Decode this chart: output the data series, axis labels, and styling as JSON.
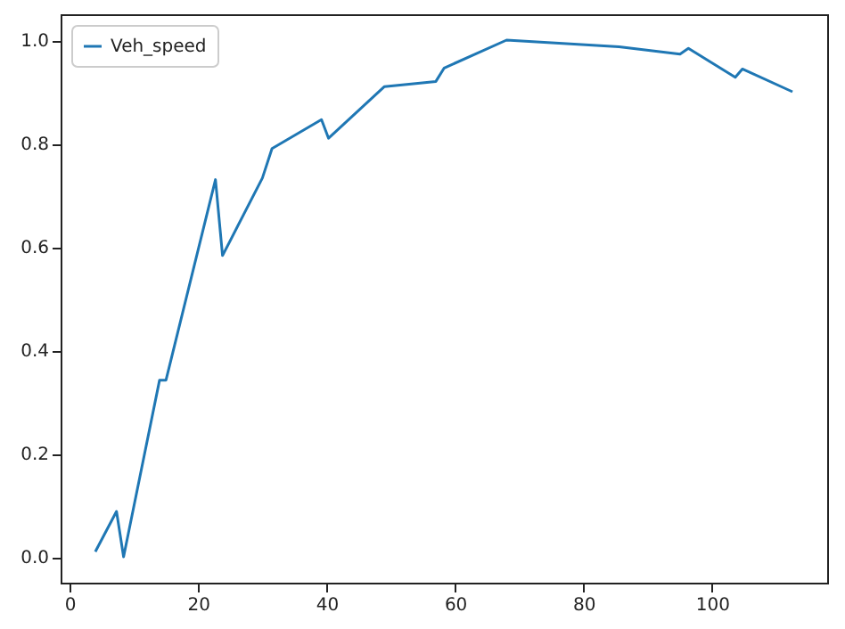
{
  "chart_data": {
    "type": "line",
    "x": [
      4,
      7.3,
      8.4,
      14,
      15,
      22.7,
      23.8,
      30,
      31.5,
      39.2,
      40.3,
      49,
      57,
      58.3,
      68,
      85.5,
      95,
      96.3,
      103.6,
      104.7,
      112.5
    ],
    "series": [
      {
        "name": "Veh_speed",
        "color": "#1f77b4",
        "values": [
          0.01,
          0.088,
          0.0,
          0.342,
          0.342,
          0.73,
          0.583,
          0.733,
          0.79,
          0.846,
          0.81,
          0.91,
          0.92,
          0.946,
          1.0,
          0.987,
          0.973,
          0.984,
          0.928,
          0.944,
          0.9
        ]
      }
    ],
    "xlim": [
      -1.4,
      117.9
    ],
    "xticks": [
      0,
      20,
      40,
      60,
      80,
      100
    ],
    "ylim": [
      -0.05,
      1.05
    ],
    "yticks": [
      {
        "value": 0,
        "label": "0.0"
      },
      {
        "value": 0.2,
        "label": "0.2"
      },
      {
        "value": 0.4,
        "label": "0.4"
      },
      {
        "value": 0.6,
        "label": "0.6"
      },
      {
        "value": 0.8,
        "label": "0.8"
      },
      {
        "value": 1,
        "label": "1.0"
      }
    ],
    "grid": false,
    "legend": "top left"
  }
}
